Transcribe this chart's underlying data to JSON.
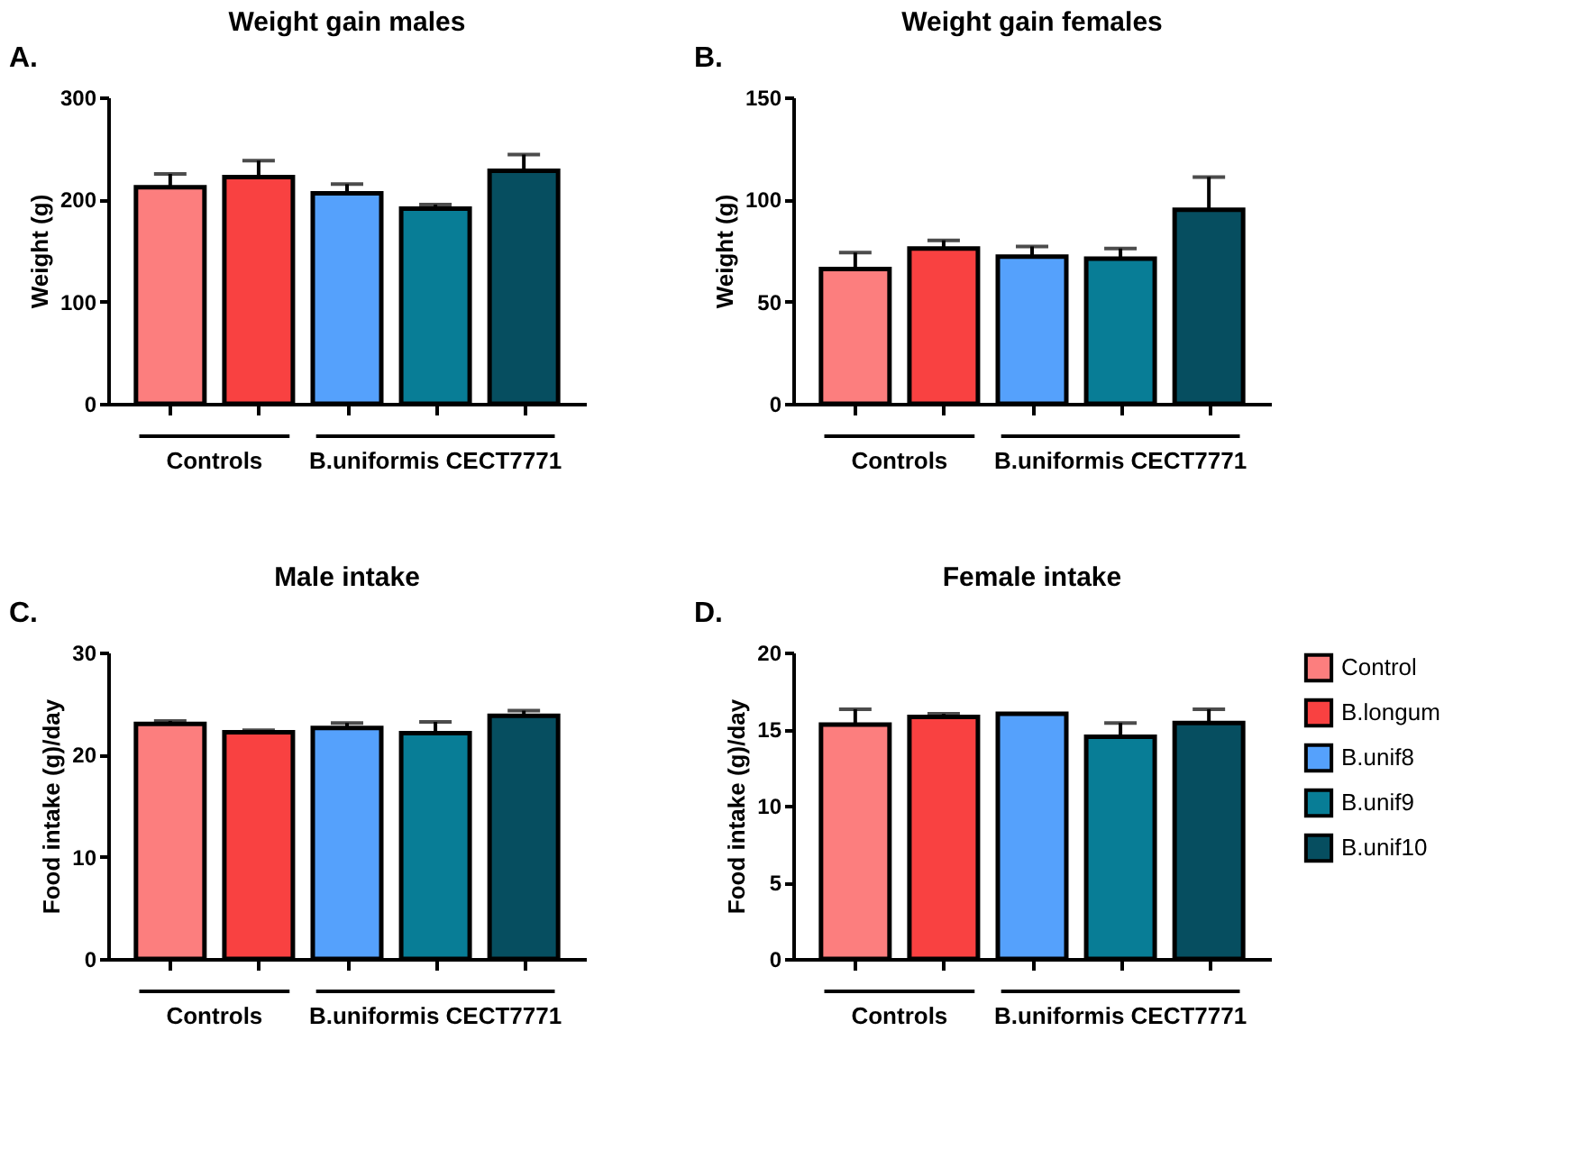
{
  "chart_data": [
    {
      "type": "bar",
      "title": "Weight gain males",
      "ylabel": "Weight (g)",
      "categories": [
        null,
        null,
        null,
        null,
        null
      ],
      "ylim": [
        0,
        300
      ],
      "yticks": [
        0,
        100,
        200,
        300
      ],
      "tick_labels": "y",
      "grid": false,
      "annotations": [
        "A.",
        "Controls",
        "B.uniformis CECT7771"
      ],
      "series": [
        {
          "color": "#fc7e7e",
          "values": [
            212,
            null,
            null,
            null,
            null
          ],
          "errors": [
            13,
            null,
            null,
            null,
            null
          ]
        },
        {
          "color": "#f94141",
          "values": [
            null,
            222,
            null,
            null,
            null
          ],
          "errors": [
            null,
            16,
            null,
            null,
            null
          ]
        },
        {
          "color": "#55a1fc",
          "values": [
            null,
            null,
            206,
            null,
            null
          ],
          "errors": [
            null,
            null,
            9,
            null,
            null
          ]
        },
        {
          "color": "#087d96",
          "values": [
            null,
            null,
            null,
            191,
            null
          ],
          "errors": [
            null,
            null,
            null,
            4,
            null
          ]
        },
        {
          "color": "#064e60",
          "values": [
            null,
            null,
            null,
            null,
            228
          ],
          "errors": [
            null,
            null,
            null,
            null,
            16
          ]
        }
      ]
    },
    {
      "type": "bar",
      "title": "Weight gain females",
      "ylabel": "Weight (g)",
      "categories": [
        null,
        null,
        null,
        null,
        null
      ],
      "ylim": [
        0,
        150
      ],
      "yticks": [
        0,
        50,
        100,
        150
      ],
      "tick_labels": "y",
      "grid": false,
      "annotations": [
        "B.",
        "Controls",
        "B.uniformis CECT7771"
      ],
      "series": [
        {
          "color": "#fc7e7e",
          "values": [
            66,
            null,
            null,
            null,
            null
          ],
          "errors": [
            8,
            null,
            null,
            null,
            null
          ]
        },
        {
          "color": "#f94141",
          "values": [
            null,
            76,
            null,
            null,
            null
          ],
          "errors": [
            null,
            4,
            null,
            null,
            null
          ]
        },
        {
          "color": "#55a1fc",
          "values": [
            null,
            null,
            72,
            null,
            null
          ],
          "errors": [
            null,
            null,
            5,
            null,
            null
          ]
        },
        {
          "color": "#087d96",
          "values": [
            null,
            null,
            null,
            71,
            null
          ],
          "errors": [
            null,
            null,
            null,
            5,
            null
          ]
        },
        {
          "color": "#064e60",
          "values": [
            null,
            null,
            null,
            null,
            95
          ],
          "errors": [
            null,
            null,
            null,
            null,
            16
          ]
        }
      ]
    },
    {
      "type": "bar",
      "title": "Male intake",
      "ylabel": "Food intake (g)/day",
      "categories": [
        null,
        null,
        null,
        null,
        null
      ],
      "ylim": [
        0,
        30
      ],
      "yticks": [
        0,
        10,
        20,
        30
      ],
      "tick_labels": "y",
      "grid": false,
      "annotations": [
        "C.",
        "Controls",
        "B.uniformis CECT7771"
      ],
      "series": [
        {
          "color": "#fc7e7e",
          "values": [
            23.0,
            null,
            null,
            null,
            null
          ],
          "errors": [
            0.3,
            null,
            null,
            null,
            null
          ]
        },
        {
          "color": "#f94141",
          "values": [
            null,
            22.2,
            null,
            null,
            null
          ],
          "errors": [
            null,
            0.2,
            null,
            null,
            null
          ]
        },
        {
          "color": "#55a1fc",
          "values": [
            null,
            null,
            22.6,
            null,
            null
          ],
          "errors": [
            null,
            null,
            0.5,
            null,
            null
          ]
        },
        {
          "color": "#087d96",
          "values": [
            null,
            null,
            null,
            22.1,
            null
          ],
          "errors": [
            null,
            null,
            null,
            1.1,
            null
          ]
        },
        {
          "color": "#064e60",
          "values": [
            null,
            null,
            null,
            null,
            23.8
          ],
          "errors": [
            null,
            null,
            null,
            null,
            0.5
          ]
        }
      ]
    },
    {
      "type": "bar",
      "title": "Female intake",
      "ylabel": "Food intake (g)/day",
      "categories": [
        null,
        null,
        null,
        null,
        null
      ],
      "ylim": [
        0,
        20
      ],
      "yticks": [
        0,
        5,
        10,
        15,
        20
      ],
      "tick_labels": "y",
      "grid": false,
      "legend": "right",
      "annotations": [
        "D.",
        "Controls",
        "B.uniformis CECT7771"
      ],
      "series": [
        {
          "name": "Control",
          "color": "#fc7e7e",
          "values": [
            15.3,
            null,
            null,
            null,
            null
          ],
          "errors": [
            1.0,
            null,
            null,
            null,
            null
          ]
        },
        {
          "name": "B.longum",
          "color": "#f94141",
          "values": [
            null,
            15.8,
            null,
            null,
            null
          ],
          "errors": [
            null,
            0.2,
            null,
            null,
            null
          ]
        },
        {
          "name": "B.unif8",
          "color": "#55a1fc",
          "values": [
            null,
            null,
            16.0,
            null,
            null
          ],
          "errors": [
            null,
            null,
            null,
            null,
            null
          ]
        },
        {
          "name": "B.unif9",
          "color": "#087d96",
          "values": [
            null,
            null,
            null,
            14.5,
            null
          ],
          "errors": [
            null,
            null,
            null,
            0.9,
            null
          ]
        },
        {
          "name": "B.unif10",
          "color": "#064e60",
          "values": [
            null,
            null,
            null,
            null,
            15.4
          ],
          "errors": [
            null,
            null,
            null,
            null,
            0.9
          ]
        }
      ]
    }
  ]
}
